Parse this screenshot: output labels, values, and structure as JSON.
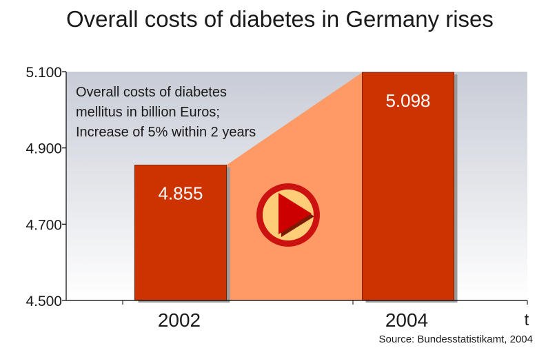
{
  "chart_data": {
    "type": "bar",
    "title": "Overall costs of diabetes in Germany rises",
    "categories": [
      "2002",
      "2004"
    ],
    "values": [
      4.855,
      5.098
    ],
    "value_labels": [
      "4.855",
      "5.098"
    ],
    "ylim": [
      4.5,
      5.1
    ],
    "y_ticks": [
      4.5,
      4.7,
      4.9,
      5.1
    ],
    "y_tick_labels": [
      "4.500",
      "4.700",
      "4.900",
      "5.100"
    ],
    "xlabel": "t",
    "ylabel": "",
    "grid": false,
    "colors": {
      "bar": "#cc3300",
      "bar_edge": "#7a1e00",
      "bar_shadow": "#9a9a9a",
      "increase_band": "#ff9966",
      "background_top": "#c8ccd6",
      "background_bottom": "#ffffff",
      "arrow_ring": "#cc1111",
      "arrow_fill": "#ffcc77",
      "arrow_triangle": "#cc0000"
    },
    "annotation": {
      "lines": [
        "Overall costs of diabetes",
        "mellitus in billion Euros;",
        "Increase of 5% within 2 years"
      ]
    },
    "icon": "play-arrow-icon",
    "source": "Source: Bundesstatistikamt, 2004"
  }
}
